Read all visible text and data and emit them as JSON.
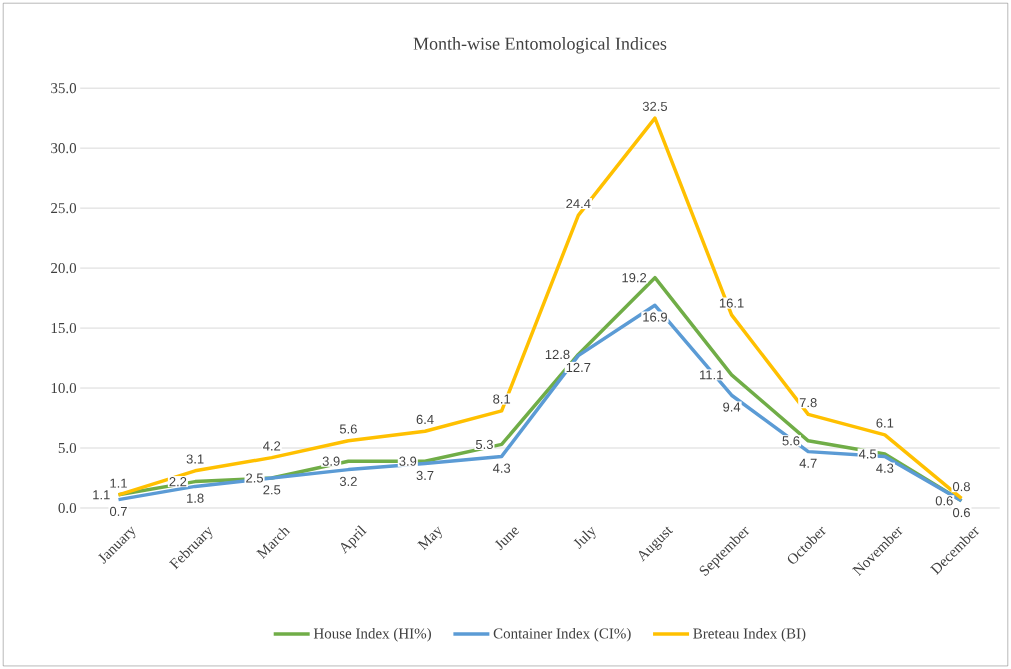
{
  "chart_data": {
    "type": "line",
    "title": "Month-wise Entomological Indices",
    "categories": [
      "January",
      "February",
      "March",
      "April",
      "May",
      "June",
      "July",
      "August",
      "September",
      "October",
      "November",
      "December"
    ],
    "series": [
      {
        "name": "House Index (HI%)",
        "color": "#70ad47",
        "values": [
          1.1,
          2.2,
          2.5,
          3.9,
          3.9,
          5.3,
          12.8,
          19.2,
          11.1,
          5.6,
          4.5,
          0.6
        ]
      },
      {
        "name": "Container Index (CI%)",
        "color": "#5b9bd5",
        "values": [
          0.7,
          1.8,
          2.5,
          3.2,
          3.7,
          4.3,
          12.7,
          16.9,
          9.4,
          4.7,
          4.3,
          0.6
        ]
      },
      {
        "name": "Breteau Index (BI)",
        "color": "#ffc000",
        "values": [
          1.1,
          3.1,
          4.2,
          5.6,
          6.4,
          8.1,
          24.4,
          32.5,
          16.1,
          7.8,
          6.1,
          0.8
        ]
      }
    ],
    "ylim": [
      0,
      35
    ],
    "yticks": [
      {
        "value": 0,
        "label": "0.0"
      },
      {
        "value": 5,
        "label": "5.0"
      },
      {
        "value": 10,
        "label": "10.0"
      },
      {
        "value": 15,
        "label": "15.0"
      },
      {
        "value": 20,
        "label": "20.0"
      },
      {
        "value": 25,
        "label": "25.0"
      },
      {
        "value": 30,
        "label": "30.0"
      },
      {
        "value": 35,
        "label": "35.0"
      }
    ],
    "grid": "y",
    "legend": "bottom",
    "marker": "none",
    "line_style": "solid",
    "data_labels": true
  }
}
